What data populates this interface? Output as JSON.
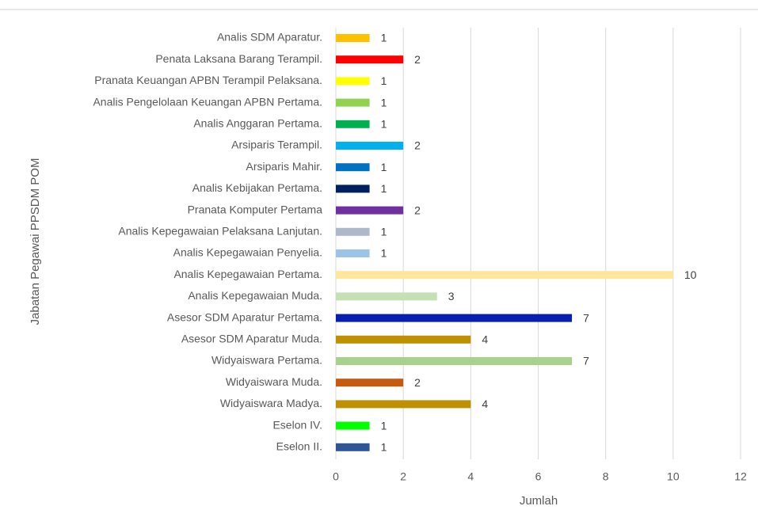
{
  "chart_data": {
    "type": "barh",
    "ylabel": "Jabatan Pegawai PPSDM POM",
    "xlabel": "Jumlah",
    "categories": [
      "Analis SDM Aparatur.",
      "Penata Laksana Barang Terampil.",
      "Pranata Keuangan APBN Terampil Pelaksana.",
      "Analis Pengelolaan Keuangan APBN Pertama.",
      "Analis Anggaran Pertama.",
      "Arsiparis Terampil.",
      "Arsiparis Mahir.",
      "Analis Kebijakan Pertama.",
      "Pranata Komputer Pertama",
      "Analis Kepegawaian Pelaksana Lanjutan.",
      "Analis Kepegawaian Penyelia.",
      "Analis Kepegawaian Pertama.",
      "Analis Kepegawaian Muda.",
      "Asesor SDM Aparatur Pertama.",
      "Asesor SDM Aparatur Muda.",
      "Widyaiswara Pertama.",
      "Widyaiswara Muda.",
      "Widyaiswara Madya.",
      "Eselon IV.",
      "Eselon II."
    ],
    "values": [
      1,
      2,
      1,
      1,
      1,
      2,
      1,
      1,
      2,
      1,
      1,
      10,
      3,
      7,
      4,
      7,
      2,
      4,
      1,
      1
    ],
    "colors": [
      "#ffc000",
      "#ff0000",
      "#ffff00",
      "#92d050",
      "#00b050",
      "#00b0f0",
      "#0070c0",
      "#002060",
      "#7030a0",
      "#adb9ca",
      "#9dc3e6",
      "#ffe699",
      "#c5e0b4",
      "#0a1fad",
      "#bf9000",
      "#a9d18e",
      "#c55a11",
      "#bf9000",
      "#00ff00",
      "#2f5597"
    ],
    "xlim": [
      0,
      12
    ],
    "xticks": [
      0,
      2,
      4,
      6,
      8,
      10,
      12
    ],
    "grid": true
  }
}
